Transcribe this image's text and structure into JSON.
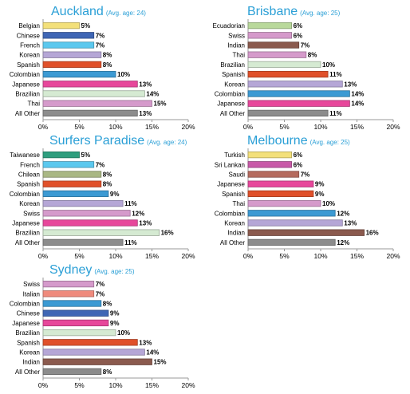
{
  "chart_data": [
    {
      "type": "bar",
      "orientation": "horizontal",
      "title": "Auckland",
      "subtitle": "(Avg. age: 24)",
      "categories": [
        "Belgian",
        "Chinese",
        "French",
        "Korean",
        "Spanish",
        "Colombian",
        "Japanese",
        "Brazilian",
        "Thai",
        "All Other"
      ],
      "values": [
        5,
        7,
        7,
        8,
        8,
        10,
        13,
        14,
        15,
        13
      ],
      "value_labels": [
        "5%",
        "7%",
        "7%",
        "8%",
        "8%",
        "10%",
        "13%",
        "14%",
        "15%",
        "13%"
      ],
      "colors": [
        "#f3e07a",
        "#3f66b5",
        "#5bc8ee",
        "#b5a6d6",
        "#e0502a",
        "#3c9ad3",
        "#e7479b",
        "#d5ead2",
        "#d59acb",
        "#8c8c8c"
      ],
      "xlim": [
        0,
        20
      ],
      "xticks": [
        "0%",
        "5%",
        "10%",
        "15%",
        "20%"
      ],
      "xlabel": "",
      "ylabel": ""
    },
    {
      "type": "bar",
      "orientation": "horizontal",
      "title": "Brisbane",
      "subtitle": "(Avg. age: 25)",
      "categories": [
        "Ecuadorian",
        "Swiss",
        "Indian",
        "Thai",
        "Brazilian",
        "Spanish",
        "Korean",
        "Colombian",
        "Japanese",
        "All Other"
      ],
      "values": [
        6,
        6,
        7,
        8,
        10,
        11,
        13,
        14,
        14,
        11
      ],
      "value_labels": [
        "6%",
        "6%",
        "7%",
        "8%",
        "10%",
        "11%",
        "13%",
        "14%",
        "14%",
        "11%"
      ],
      "colors": [
        "#b9d99b",
        "#d59acb",
        "#8b5a4e",
        "#d59acb",
        "#d5ead2",
        "#e0502a",
        "#b5a6d6",
        "#3c9ad3",
        "#e7479b",
        "#8c8c8c"
      ],
      "xlim": [
        0,
        20
      ],
      "xticks": [
        "0%",
        "5%",
        "10%",
        "15%",
        "20%"
      ],
      "xlabel": "",
      "ylabel": ""
    },
    {
      "type": "bar",
      "orientation": "horizontal",
      "title": "Surfers Paradise",
      "subtitle": "(Avg. age: 24)",
      "categories": [
        "Taiwanese",
        "French",
        "Chilean",
        "Spanish",
        "Colombian",
        "Korean",
        "Swiss",
        "Japanese",
        "Brazilian",
        "All Other"
      ],
      "values": [
        5,
        7,
        8,
        8,
        9,
        11,
        12,
        13,
        16,
        11
      ],
      "value_labels": [
        "5%",
        "7%",
        "8%",
        "8%",
        "9%",
        "11%",
        "12%",
        "13%",
        "16%",
        "11%"
      ],
      "colors": [
        "#2e9e7e",
        "#5bc8ee",
        "#a9b784",
        "#e0502a",
        "#3c9ad3",
        "#b5a6d6",
        "#d59acb",
        "#e7479b",
        "#d5ead2",
        "#8c8c8c"
      ],
      "xlim": [
        0,
        20
      ],
      "xticks": [
        "0%",
        "5%",
        "10%",
        "15%",
        "20%"
      ],
      "xlabel": "",
      "ylabel": ""
    },
    {
      "type": "bar",
      "orientation": "horizontal",
      "title": "Melbourne",
      "subtitle": "(Avg. age: 25)",
      "categories": [
        "Turkish",
        "Sri Lankan",
        "Saudi",
        "Japanese",
        "Spanish",
        "Thai",
        "Colombian",
        "Korean",
        "Indian",
        "All Other"
      ],
      "values": [
        6,
        6,
        7,
        9,
        9,
        10,
        12,
        13,
        16,
        12
      ],
      "value_labels": [
        "6%",
        "6%",
        "7%",
        "9%",
        "9%",
        "10%",
        "12%",
        "13%",
        "16%",
        "12%"
      ],
      "colors": [
        "#f3e07a",
        "#c85aa8",
        "#b56b5e",
        "#e7479b",
        "#e0502a",
        "#d59acb",
        "#3c9ad3",
        "#b5a6d6",
        "#8b5a4e",
        "#8c8c8c"
      ],
      "xlim": [
        0,
        20
      ],
      "xticks": [
        "0%",
        "5%",
        "10%",
        "15%",
        "20%"
      ],
      "xlabel": "",
      "ylabel": ""
    },
    {
      "type": "bar",
      "orientation": "horizontal",
      "title": "Sydney",
      "subtitle": "(Avg. age: 25)",
      "categories": [
        "Swiss",
        "Italian",
        "Colombian",
        "Chinese",
        "Japanese",
        "Brazilian",
        "Spanish",
        "Korean",
        "Indian",
        "All Other"
      ],
      "values": [
        7,
        7,
        8,
        9,
        9,
        10,
        13,
        14,
        15,
        8
      ],
      "value_labels": [
        "7%",
        "7%",
        "8%",
        "9%",
        "9%",
        "10%",
        "13%",
        "14%",
        "15%",
        "8%"
      ],
      "colors": [
        "#d59acb",
        "#ef8a7c",
        "#3c9ad3",
        "#3f66b5",
        "#e7479b",
        "#d5ead2",
        "#e0502a",
        "#b5a6d6",
        "#8b5a4e",
        "#8c8c8c"
      ],
      "xlim": [
        0,
        20
      ],
      "xticks": [
        "0%",
        "5%",
        "10%",
        "15%",
        "20%"
      ],
      "xlabel": "",
      "ylabel": ""
    }
  ]
}
